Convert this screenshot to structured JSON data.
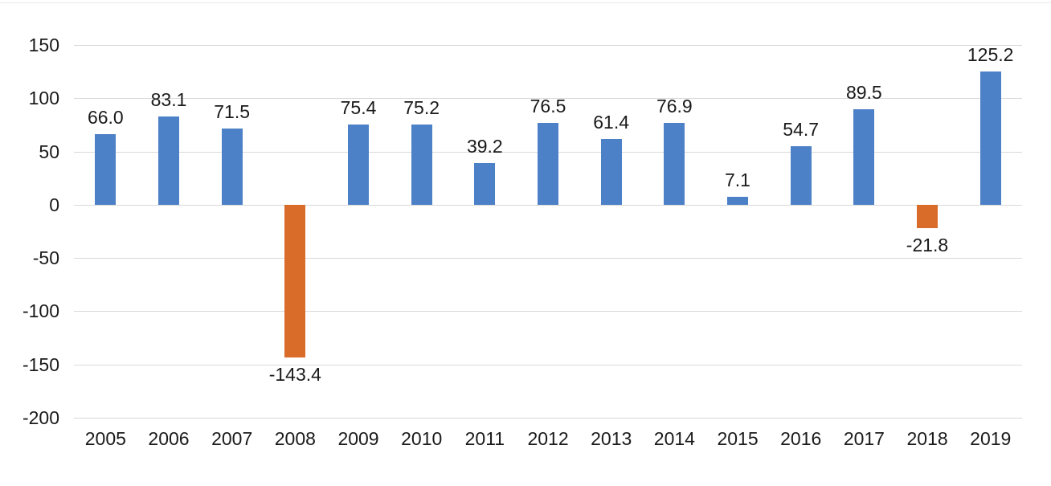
{
  "chart_data": {
    "type": "bar",
    "title": "",
    "xlabel": "",
    "ylabel": "",
    "categories": [
      "2005",
      "2006",
      "2007",
      "2008",
      "2009",
      "2010",
      "2011",
      "2012",
      "2013",
      "2014",
      "2015",
      "2016",
      "2017",
      "2018",
      "2019"
    ],
    "values": [
      66.0,
      83.1,
      71.5,
      -143.4,
      75.4,
      75.2,
      39.2,
      76.5,
      61.4,
      76.9,
      7.1,
      54.7,
      89.5,
      -21.8,
      125.2
    ],
    "value_labels": [
      "66.0",
      "83.1",
      "71.5",
      "-143.4",
      "75.4",
      "75.2",
      "39.2",
      "76.5",
      "61.4",
      "76.9",
      "7.1",
      "54.7",
      "89.5",
      "-21.8",
      "125.2"
    ],
    "ylim": [
      -200,
      150
    ],
    "yticks": [
      150,
      100,
      50,
      0,
      -50,
      -100,
      -150,
      -200
    ],
    "grid": true,
    "legend": false,
    "colors": {
      "positive": "#4d81c7",
      "negative": "#d96c28",
      "gridline": "#d9d9d9",
      "text": "#1a1a1a"
    }
  }
}
